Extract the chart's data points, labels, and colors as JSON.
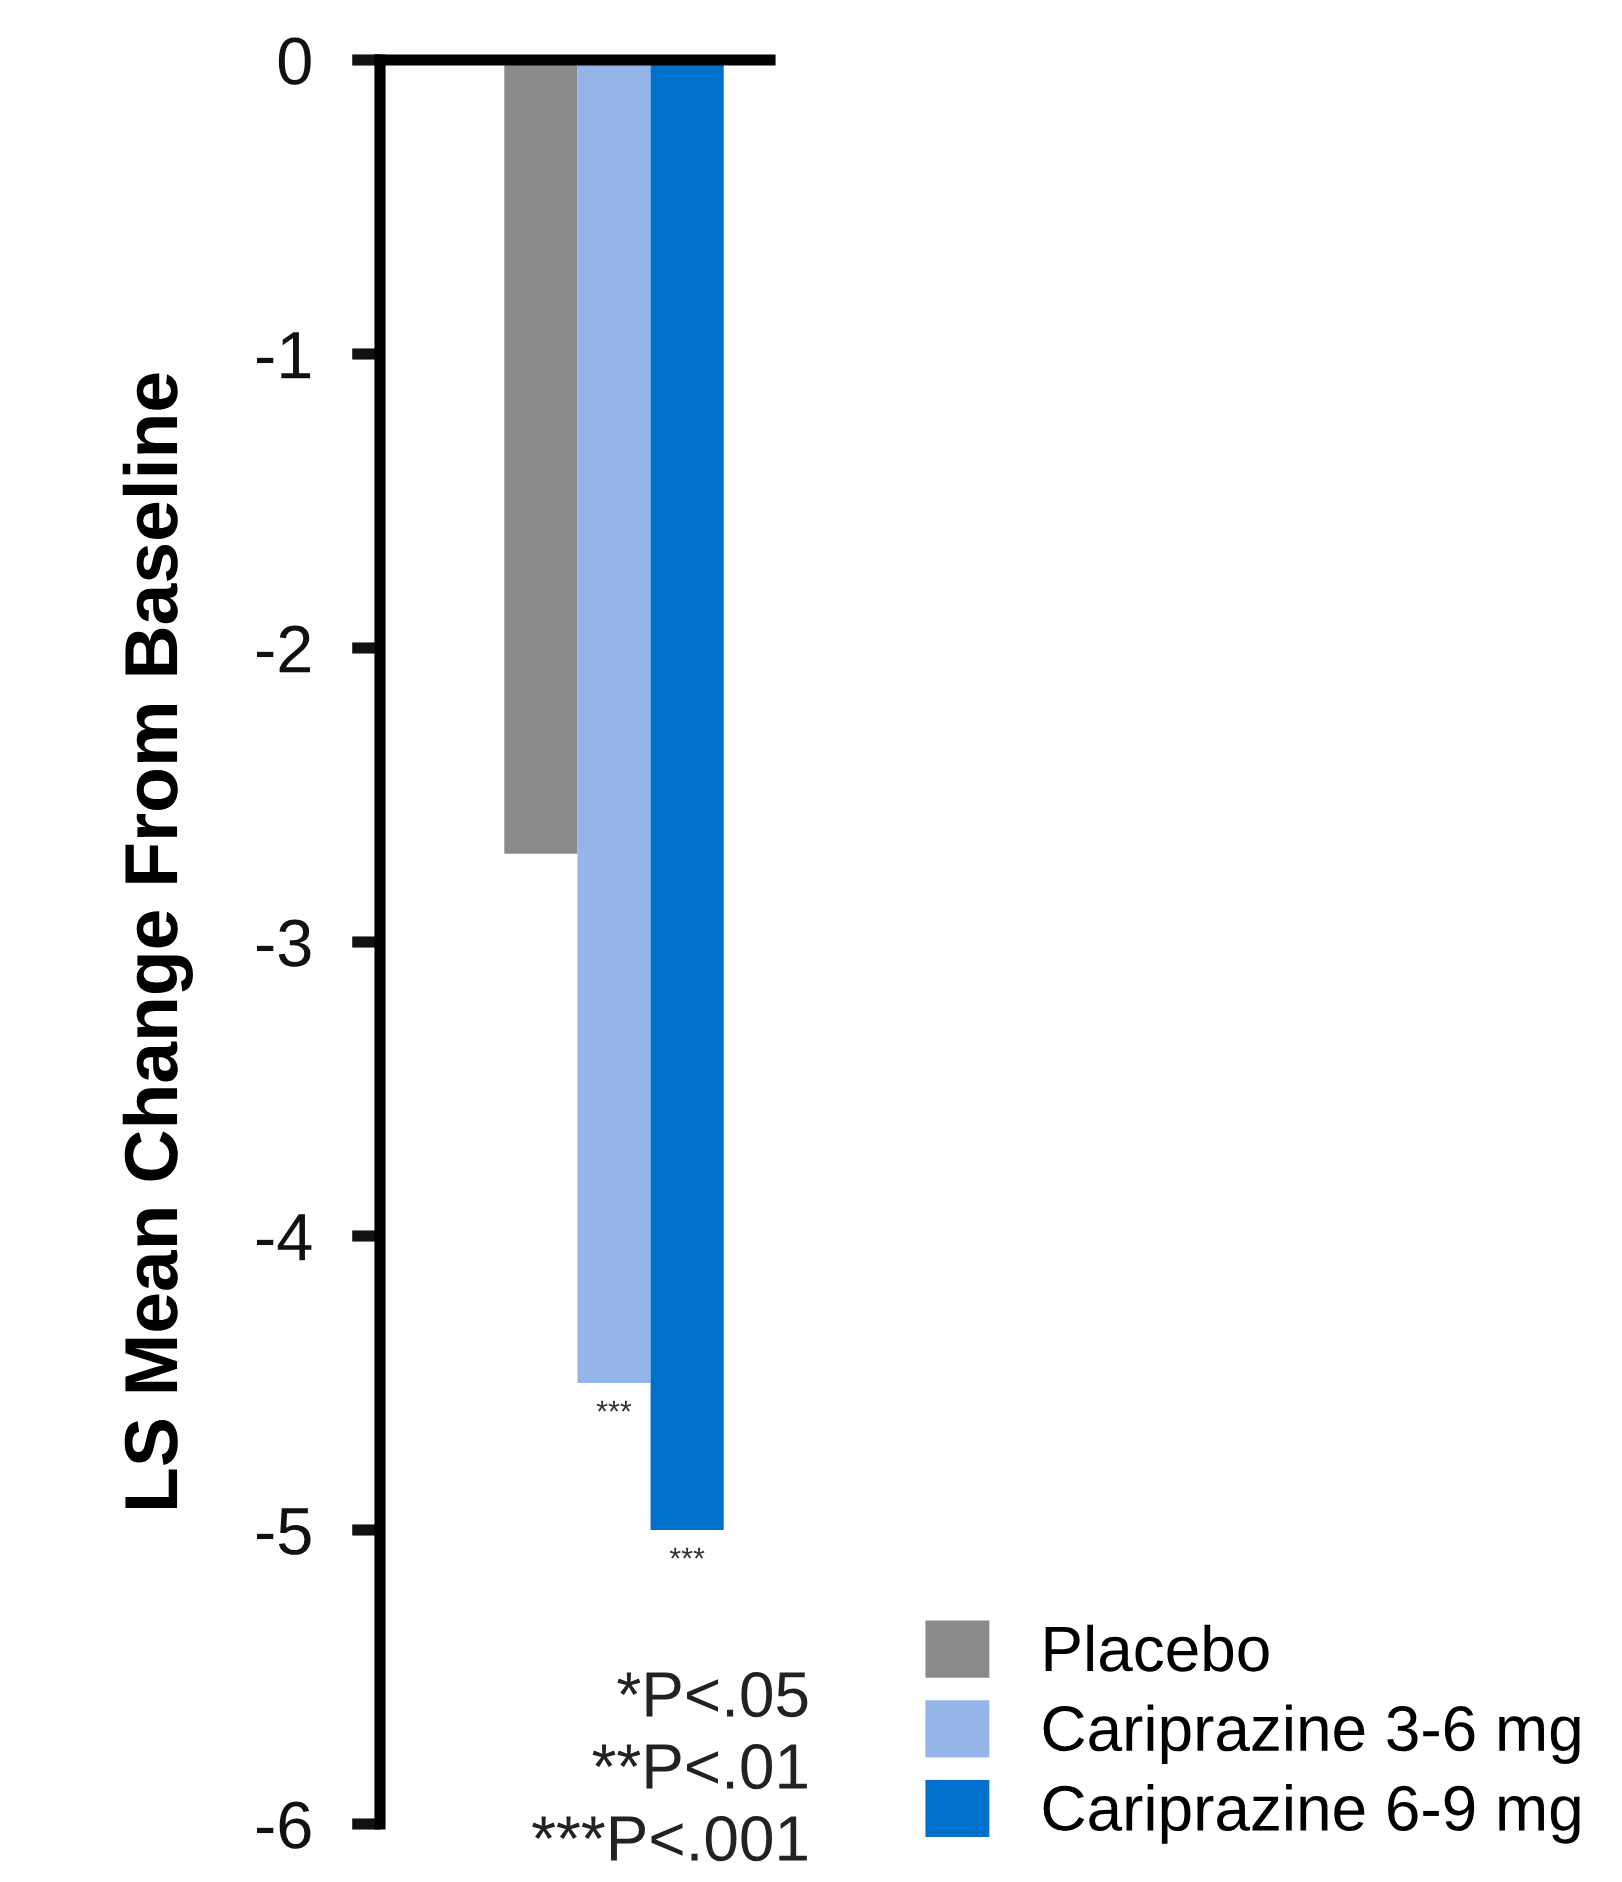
{
  "chart_data": {
    "type": "bar",
    "ylabel": "LS Mean Change From Baseline",
    "categories": [
      null
    ],
    "series": [
      {
        "name": "Placebo",
        "color": "#8a8a8c",
        "values": [
          -2.7
        ]
      },
      {
        "name": "Cariprazine 3-6 mg",
        "color": "#93b5e8",
        "values": [
          -4.5
        ]
      },
      {
        "name": "Cariprazine 6-9 mg",
        "color": "#0070cc",
        "values": [
          -5.0
        ]
      }
    ],
    "ylim": [
      -6,
      0
    ],
    "yticks": [
      0,
      -1,
      -2,
      -3,
      -4,
      -5,
      -6
    ],
    "grid": false,
    "legend": "bottom right",
    "annotations": [
      {
        "text": "***",
        "y": -4.5
      },
      {
        "text": "***",
        "y": -5.0
      },
      "*P<.05",
      "**P<.01",
      "***P<.001"
    ]
  }
}
